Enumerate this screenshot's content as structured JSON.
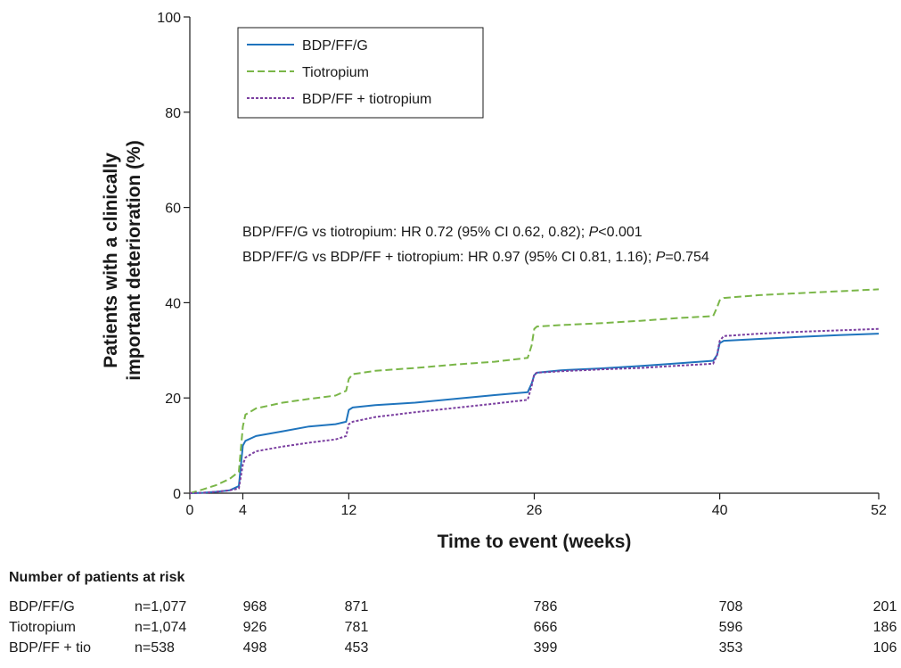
{
  "chart_data": {
    "type": "line",
    "xlabel": "Time to event (weeks)",
    "ylabel_lines": [
      "Patients with a clinically",
      "important deterioration (%)"
    ],
    "xlim": [
      0,
      52
    ],
    "ylim": [
      0,
      100
    ],
    "x_ticks": [
      0,
      4,
      12,
      26,
      40,
      52
    ],
    "y_ticks": [
      0,
      20,
      40,
      60,
      80,
      100
    ],
    "grid": false,
    "legend_position": "top-left",
    "series": [
      {
        "name": "BDP/FF/G",
        "color": "#1f74bd",
        "dash": "solid",
        "x": [
          0,
          1,
          2,
          3,
          3.7,
          4,
          4.2,
          5,
          7,
          9,
          11,
          11.8,
          12,
          12.3,
          14,
          17,
          20,
          23,
          25.5,
          25.8,
          26,
          26.2,
          28,
          31,
          34,
          37,
          39.5,
          39.8,
          40,
          40.3,
          43,
          46,
          49,
          52
        ],
        "y": [
          0,
          0.1,
          0.3,
          0.6,
          1.5,
          10,
          11,
          12,
          13,
          14,
          14.5,
          15,
          17.5,
          18,
          18.5,
          19,
          19.8,
          20.6,
          21.2,
          23,
          24.8,
          25.3,
          25.8,
          26.2,
          26.7,
          27.3,
          27.8,
          29,
          31.5,
          32,
          32.4,
          32.8,
          33.2,
          33.5
        ]
      },
      {
        "name": "Tiotropium",
        "color": "#7ab648",
        "dash": "dashed",
        "x": [
          0,
          1,
          2,
          3,
          3.7,
          4,
          4.2,
          5,
          7,
          9,
          11,
          11.8,
          12,
          12.3,
          14,
          17,
          20,
          23,
          25.5,
          25.8,
          26,
          26.2,
          28,
          31,
          34,
          37,
          39.5,
          39.8,
          40,
          40.3,
          43,
          46,
          49,
          52
        ],
        "y": [
          0,
          0.8,
          1.7,
          3,
          4.5,
          14,
          16.5,
          17.8,
          19,
          19.8,
          20.5,
          21.5,
          24,
          25,
          25.7,
          26.3,
          27,
          27.6,
          28.4,
          31,
          34.5,
          35,
          35.3,
          35.7,
          36.2,
          36.8,
          37.2,
          39,
          40.5,
          41,
          41.6,
          42,
          42.4,
          42.8
        ]
      },
      {
        "name": "BDP/FF + tiotropium",
        "color": "#7b3fa0",
        "dash": "dotted",
        "x": [
          0,
          1,
          2,
          3,
          3.7,
          4,
          4.2,
          5,
          7,
          9,
          11,
          11.8,
          12,
          12.3,
          14,
          17,
          20,
          23,
          25.5,
          25.8,
          26,
          26.2,
          28,
          31,
          34,
          37,
          39.5,
          39.8,
          40,
          40.3,
          43,
          46,
          49,
          52
        ],
        "y": [
          0,
          0.1,
          0.3,
          0.6,
          1,
          6,
          7.5,
          8.8,
          9.8,
          10.6,
          11.3,
          12,
          14.5,
          15,
          16,
          17,
          17.9,
          18.8,
          19.6,
          22.5,
          25,
          25.3,
          25.6,
          26,
          26.3,
          26.8,
          27.2,
          29,
          32,
          33,
          33.5,
          33.9,
          34.2,
          34.5
        ]
      }
    ],
    "annotations": [
      {
        "prefix": "BDP/FF/G vs tiotropium: HR 0.72 (95% CI 0.62, 0.82); ",
        "italic": "P",
        "suffix": "<0.001"
      },
      {
        "prefix": "BDP/FF/G vs BDP/FF + tiotropium: HR 0.97 (95% CI 0.81, 1.16); ",
        "italic": "P",
        "suffix": "=0.754"
      }
    ],
    "risk_table": {
      "title": "Number of patients at risk",
      "rows": [
        {
          "label": "BDP/FF/G",
          "n": "n=1,077",
          "values": [
            "968",
            "871",
            "786",
            "708",
            "201"
          ]
        },
        {
          "label": "Tiotropium",
          "n": "n=1,074",
          "values": [
            "926",
            "781",
            "666",
            "596",
            "186"
          ]
        },
        {
          "label": "BDP/FF + tio",
          "n": "n=538",
          "values": [
            "498",
            "453",
            "399",
            "353",
            "106"
          ]
        }
      ]
    }
  }
}
